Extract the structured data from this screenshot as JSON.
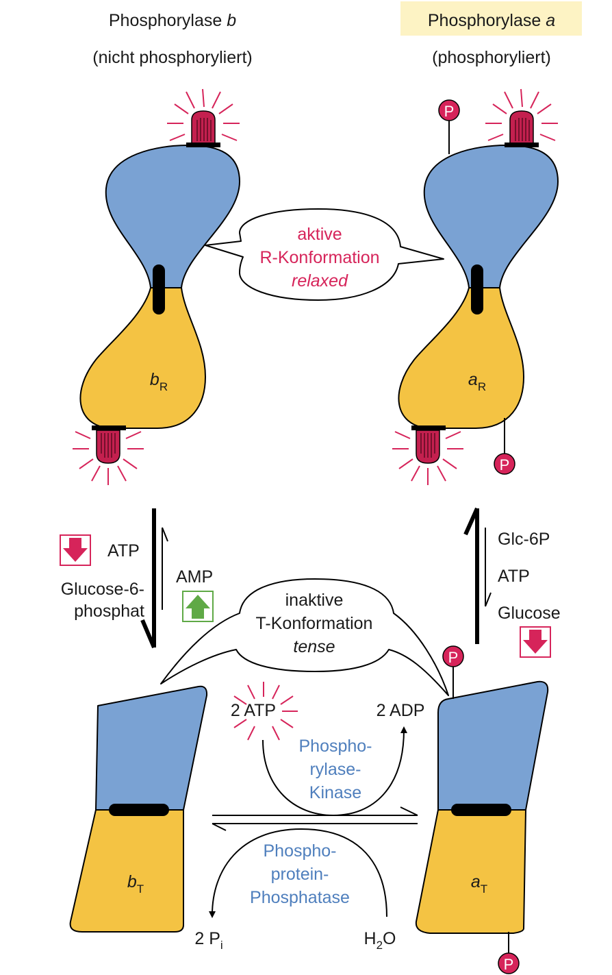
{
  "header": {
    "left_title_main": "Phosphorylase ",
    "left_title_ital": "b",
    "left_subtitle": "(nicht phosphoryliert)",
    "right_title_main": "Phosphorylase ",
    "right_title_ital": "a",
    "right_subtitle": "(phosphoryliert)"
  },
  "active_bubble": {
    "line1": "aktive",
    "line2": "R-Konformation",
    "line3": "relaxed"
  },
  "inactive_bubble": {
    "line1": "inaktive",
    "line2": "T-Konformation",
    "line3": "tense"
  },
  "states": {
    "bR": {
      "main": "b",
      "sub": "R"
    },
    "aR": {
      "main": "a",
      "sub": "R"
    },
    "bT": {
      "main": "b",
      "sub": "T"
    },
    "aT": {
      "main": "a",
      "sub": "T"
    }
  },
  "left_regulation": {
    "atp": "ATP",
    "g6p_line1": "Glucose-6-",
    "g6p_line2": "phosphat",
    "amp": "AMP"
  },
  "right_regulation": {
    "glc6p": "Glc-6P",
    "atp": "ATP",
    "glucose": "Glucose"
  },
  "phospho_label": "P",
  "kinase": {
    "atp": "2 ATP",
    "adp": "2 ADP",
    "name_line1": "Phospho-",
    "name_line2": "rylase-",
    "name_line3": "Kinase"
  },
  "phosphatase": {
    "pi_main": "2 P",
    "pi_sub": "i",
    "water_h": "H",
    "water_sub": "2",
    "water_o": "O",
    "name_line1": "Phospho-",
    "name_line2": "protein-",
    "name_line3": "Phosphatase"
  },
  "colors": {
    "blue_domain": "#7aa2d3",
    "yellow_domain": "#f4c343",
    "accent_red": "#d6245a",
    "enzyme_blue": "#4f7fbd",
    "inhibit_red": "#d6245a",
    "activate_green": "#5fa946",
    "header_highlight": "#fdf3c4"
  }
}
